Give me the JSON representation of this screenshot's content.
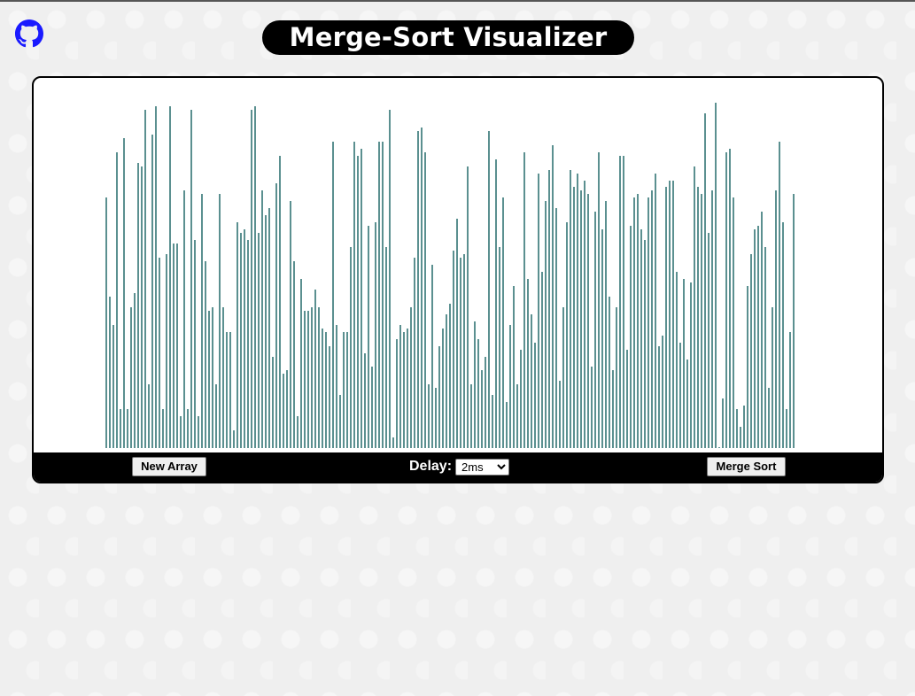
{
  "header": {
    "title": "Merge-Sort Visualizer",
    "github_icon": "github-icon"
  },
  "colors": {
    "bar": "#5b9090",
    "title_bg": "#000000",
    "github_icon": "#1a1aff"
  },
  "visualizer": {
    "bars": [
      71,
      43,
      35,
      84,
      11,
      88,
      11,
      40,
      44,
      81,
      80,
      96,
      18,
      89,
      97,
      54,
      11,
      55,
      97,
      58,
      58,
      9,
      73,
      11,
      96,
      59,
      9,
      72,
      53,
      39,
      40,
      18,
      72,
      40,
      33,
      33,
      5,
      64,
      61,
      62,
      59,
      96,
      97,
      61,
      73,
      66,
      68,
      26,
      75,
      83,
      21,
      22,
      70,
      53,
      9,
      48,
      39,
      39,
      40,
      45,
      40,
      34,
      33,
      29,
      87,
      35,
      15,
      33,
      33,
      57,
      87,
      83,
      85,
      27,
      63,
      23,
      64,
      87,
      87,
      57,
      96,
      3,
      31,
      35,
      33,
      34,
      40,
      54,
      90,
      91,
      84,
      18,
      52,
      17,
      29,
      34,
      38,
      41,
      56,
      65,
      54,
      55,
      80,
      18,
      36,
      31,
      22,
      26,
      90,
      15,
      82,
      57,
      71,
      13,
      35,
      46,
      18,
      28,
      84,
      48,
      38,
      30,
      78,
      50,
      70,
      79,
      86,
      68,
      19,
      40,
      64,
      79,
      74,
      78,
      73,
      76,
      72,
      23,
      67,
      84,
      62,
      70,
      43,
      22,
      40,
      83,
      83,
      28,
      63,
      71,
      72,
      62,
      59,
      71,
      73,
      78,
      29,
      32,
      74,
      76,
      76,
      50,
      30,
      48,
      25,
      47,
      80,
      74,
      72,
      95,
      61,
      73,
      98,
      0,
      14,
      84,
      85,
      71,
      11,
      6,
      12,
      46,
      55,
      62,
      63,
      67,
      57,
      17,
      40,
      73,
      87,
      64,
      11,
      33,
      72
    ]
  },
  "controls": {
    "new_array_label": "New Array",
    "delay_label": "Delay:",
    "delay_value": "2ms",
    "merge_sort_label": "Merge Sort"
  }
}
